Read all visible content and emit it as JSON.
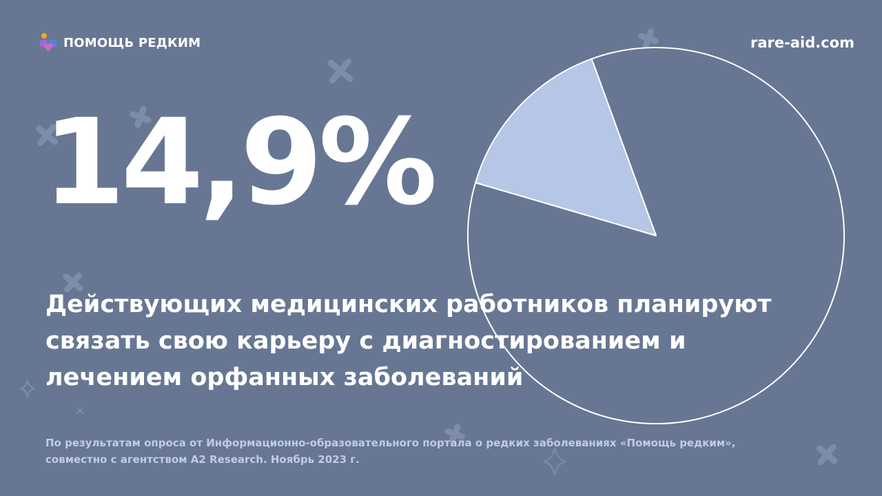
{
  "brand": {
    "name": "ПОМОЩЬ РЕДКИМ",
    "logo_icon": "people-cross-logo-icon",
    "colors": {
      "background": "#677793",
      "slice_highlight": "#b5c6e6",
      "text": "#ffffff",
      "footnote": "#c1cbe6",
      "logo_orange": "#f5a623",
      "logo_purple": "#9b6bd6",
      "logo_blue": "#5b7fe0"
    }
  },
  "site_url": "rare-aid.com",
  "stat": {
    "value": "14,9%"
  },
  "headline_lines": [
    "Действующих медицинских работников планируют",
    "связать свою карьеру с диагностированием и",
    "лечением орфанных заболеваний"
  ],
  "footnote_lines": [
    "По результатам опроса от Информационно-образовательного портала о редких заболеваниях «Помощь редким»,",
    "совместно с агентством A2 Research. Ноябрь 2023 г."
  ],
  "chart_data": {
    "type": "pie",
    "slices": [
      {
        "value": 14.9,
        "highlighted": true,
        "color": "#b5c6e6"
      },
      {
        "value": 85.1,
        "highlighted": false,
        "color": "#677793"
      }
    ],
    "start_angle_deg": -20,
    "legend": "none"
  }
}
